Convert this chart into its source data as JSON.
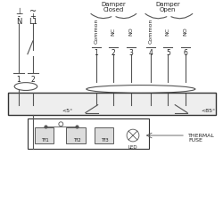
{
  "bg_color": "#ffffff",
  "line_color": "#555555",
  "text_color": "#222222",
  "left_labels_top": [
    "⊥",
    "~"
  ],
  "left_labels_mid": [
    "-",
    "+"
  ],
  "left_labels_bot": [
    "N",
    "L1"
  ],
  "damper_closed_label": "Damper\nClosed",
  "damper_open_label": "Damper\nOpen",
  "col_labels": [
    "Common",
    "NC",
    "NO",
    "Common",
    "NC",
    "NO"
  ],
  "col_nums": [
    "1",
    "2",
    "3",
    "4",
    "5",
    "6"
  ],
  "power_nums": [
    "1",
    "2"
  ],
  "angle_label1": "<5°",
  "angle_label2": "<85°",
  "thermal_label": "THERMAL\nFUSE",
  "tf_labels": [
    "Tf1",
    "Tf2",
    "Tf3",
    "LED"
  ]
}
